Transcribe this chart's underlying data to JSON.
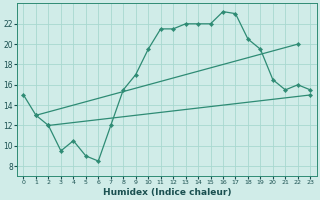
{
  "line1_x": [
    0,
    1,
    2,
    3,
    4,
    5,
    6,
    7,
    8,
    9,
    10,
    11,
    12,
    13,
    14,
    15,
    16,
    17,
    18,
    19,
    20,
    21,
    22,
    23
  ],
  "line1_y": [
    15,
    13,
    12,
    9.5,
    10.5,
    9,
    8.5,
    12,
    15.5,
    17,
    19.5,
    21.5,
    21.5,
    22,
    22,
    22,
    23.2,
    23,
    20.5,
    19.5,
    16.5,
    15.5,
    16,
    15.5
  ],
  "line2_x": [
    1,
    22
  ],
  "line2_y": [
    13,
    20
  ],
  "line3_x": [
    2,
    23
  ],
  "line3_y": [
    12,
    15
  ],
  "color": "#2e8b74",
  "bg_color": "#d0ece8",
  "grid_color": "#a8d8d0",
  "xlabel": "Humidex (Indice chaleur)",
  "ylim": [
    7,
    24
  ],
  "xlim": [
    -0.5,
    23.5
  ],
  "yticks": [
    8,
    10,
    12,
    14,
    16,
    18,
    20,
    22
  ],
  "xticks": [
    0,
    1,
    2,
    3,
    4,
    5,
    6,
    7,
    8,
    9,
    10,
    11,
    12,
    13,
    14,
    15,
    16,
    17,
    18,
    19,
    20,
    21,
    22,
    23
  ]
}
